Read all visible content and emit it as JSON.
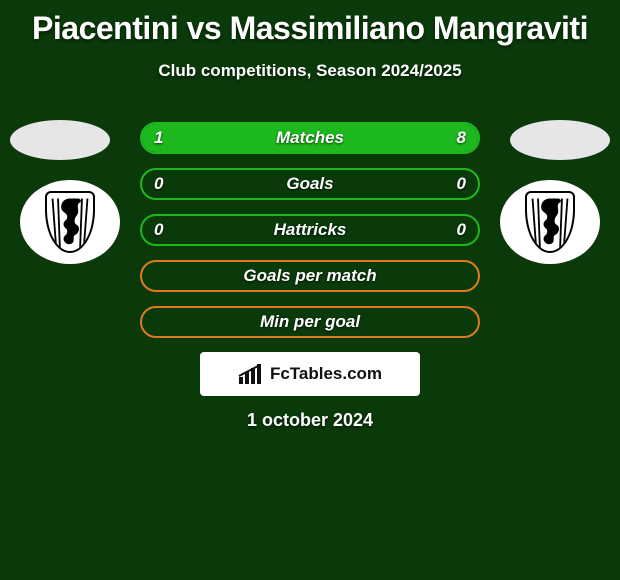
{
  "title": "Piacentini vs Massimiliano Mangraviti",
  "subtitle": "Club competitions, Season 2024/2025",
  "date": "1 october 2024",
  "logo_text": "FcTables.com",
  "colors": {
    "background": "#0a3a0a",
    "bar_green_border": "#1db81d",
    "bar_green_fill": "#1db81d",
    "bar_orange_border": "#e07a1f",
    "text": "#ffffff",
    "logo_bg": "#ffffff"
  },
  "bars": [
    {
      "label": "Matches",
      "left_value": "1",
      "right_value": "8",
      "left_pct": 11,
      "right_pct": 89,
      "style": "green"
    },
    {
      "label": "Goals",
      "left_value": "0",
      "right_value": "0",
      "left_pct": 0,
      "right_pct": 0,
      "style": "green"
    },
    {
      "label": "Hattricks",
      "left_value": "0",
      "right_value": "0",
      "left_pct": 0,
      "right_pct": 0,
      "style": "green"
    },
    {
      "label": "Goals per match",
      "left_value": "",
      "right_value": "",
      "left_pct": 0,
      "right_pct": 0,
      "style": "orange"
    },
    {
      "label": "Min per goal",
      "left_value": "",
      "right_value": "",
      "left_pct": 0,
      "right_pct": 0,
      "style": "orange"
    }
  ]
}
